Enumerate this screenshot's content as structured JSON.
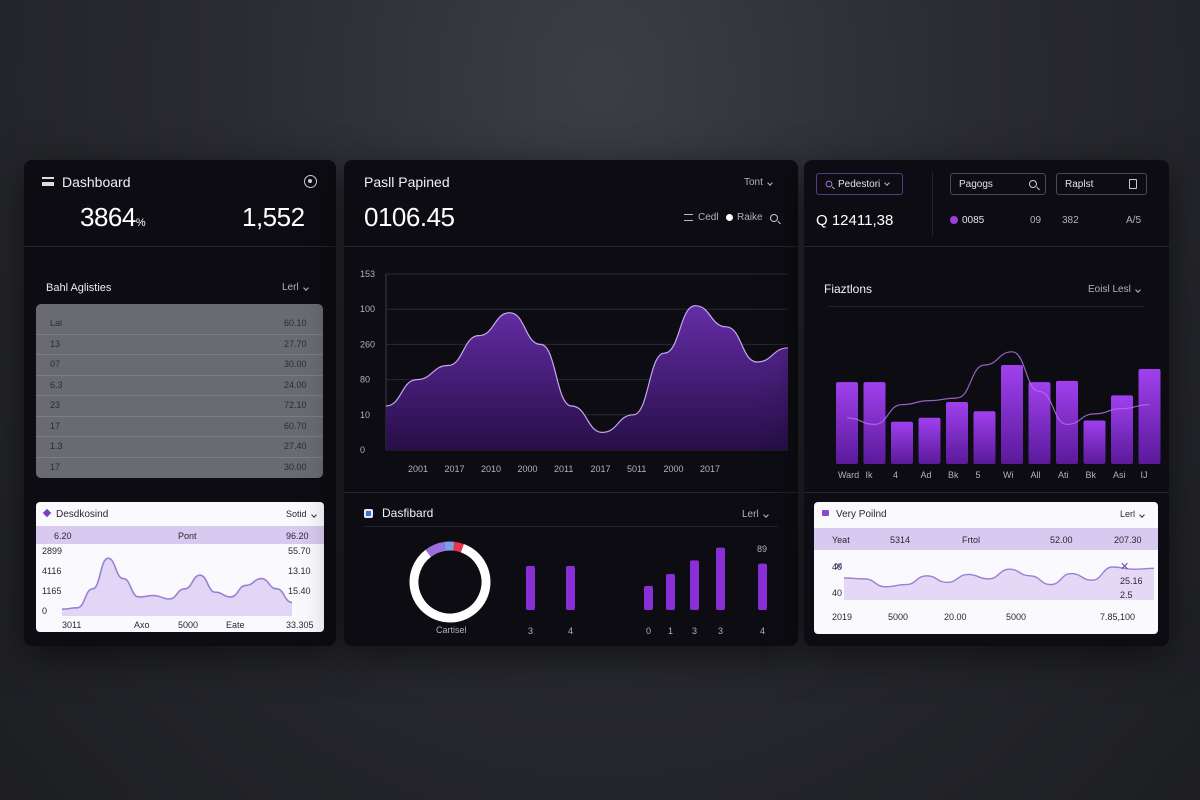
{
  "left": {
    "title": "Dashboard",
    "kpi_a": "3864",
    "kpi_a_suffix": "%",
    "kpi_b": "1,552",
    "table_title": "Bahl Aglisties",
    "table_filter": "Lerl",
    "rows": [
      {
        "label": "Lal",
        "value": "60.10"
      },
      {
        "label": "13",
        "value": "27.70"
      },
      {
        "label": "07",
        "value": "30.00"
      },
      {
        "label": "6.3",
        "value": "24.00"
      },
      {
        "label": "23",
        "value": "72.10"
      },
      {
        "label": "17",
        "value": "60.70"
      },
      {
        "label": "1.3",
        "value": "27.40"
      },
      {
        "label": "17",
        "value": "30.00"
      }
    ],
    "mini": {
      "title": "Desdkosind",
      "filter": "Sotid",
      "band_left": "6.20",
      "band_mid": "Pont",
      "band_right": "96.20",
      "y_labels": [
        "2899",
        "4116",
        "1165",
        "0"
      ],
      "right_labels": [
        "55.70",
        "13.10",
        "15.40"
      ],
      "x_labels": [
        "3011",
        "Axo",
        "5000",
        "Eate",
        "33.305"
      ],
      "values": [
        10,
        12,
        40,
        85,
        55,
        28,
        30,
        25,
        40,
        60,
        35,
        28,
        45,
        55,
        40,
        20
      ],
      "accent": "#9b7fd4"
    }
  },
  "middle": {
    "title": "Pasll Papined",
    "kpi": "0106.45",
    "filter": "Tont",
    "legend_a": "Cedl",
    "legend_b": "Raike",
    "area_chart": {
      "y_labels": [
        "153",
        "100",
        "260",
        "80",
        "10",
        "0"
      ],
      "x_labels": [
        "2001",
        "2017",
        "2010",
        "2000",
        "2011",
        "2017",
        "5011",
        "2000",
        "2017"
      ],
      "values": [
        25,
        40,
        48,
        65,
        78,
        60,
        25,
        10,
        20,
        55,
        82,
        70,
        50,
        58
      ],
      "ymax": 100,
      "color": "#6a2fb0"
    },
    "bottom": {
      "title": "Dasfibard",
      "filter": "Lerl",
      "donut_label": "Cartisel",
      "donut": [
        {
          "value": 0.84,
          "color": "#ffffff"
        },
        {
          "value": 0.08,
          "color": "#9b6fe0"
        },
        {
          "value": 0.04,
          "color": "#7aa0e8"
        },
        {
          "value": 0.04,
          "color": "#e8334a"
        }
      ],
      "bars_left": [
        {
          "label": "3",
          "value": 55
        },
        {
          "label": "4",
          "value": 55
        }
      ],
      "bars_right": [
        {
          "label": "0",
          "value": 30
        },
        {
          "label": "1",
          "value": 45
        },
        {
          "label": "3",
          "value": 62
        },
        {
          "label": "3",
          "value": 78
        },
        {
          "label": "4",
          "value": 58
        }
      ],
      "bars_top_label": "89"
    }
  },
  "right": {
    "search_pill": "Pedestori",
    "pill_a": "Pagogs",
    "pill_b": "Raplst",
    "kpi": "12411,38",
    "kpi_prefix": "Q",
    "stat_dot": "0085",
    "stat_1": "09",
    "stat_2": "382",
    "stat_3": "A/5",
    "bar_title": "Fiaztlons",
    "bar_filter": "Eoisl Lesl",
    "bar_chart": {
      "x_labels": [
        "Ward",
        "Ik",
        "4",
        "Ad",
        "Bk",
        "5",
        "Wi",
        "All",
        "Ati",
        "Bk",
        "Asi",
        "IJ"
      ],
      "values": [
        62,
        62,
        32,
        35,
        47,
        40,
        75,
        62,
        63,
        33,
        52,
        72
      ],
      "line": [
        35,
        30,
        45,
        48,
        50,
        75,
        85,
        55,
        30,
        38,
        42,
        45
      ],
      "ymax": 100,
      "color": "#8a2fd6"
    },
    "mini": {
      "title": "Very Poilnd",
      "filter": "Lerl",
      "band": [
        "Yeat",
        "5314",
        "Frtol",
        "52.00",
        "207.30"
      ],
      "y_labels": [
        "40",
        "40"
      ],
      "right_labels": [
        "25.16",
        "2.5"
      ],
      "x_labels": [
        "2019",
        "5000",
        "20.00",
        "5000",
        "7.85,100"
      ],
      "values": [
        50,
        48,
        30,
        35,
        55,
        40,
        58,
        48,
        70,
        55,
        35,
        60,
        45,
        75,
        70,
        72
      ]
    }
  }
}
